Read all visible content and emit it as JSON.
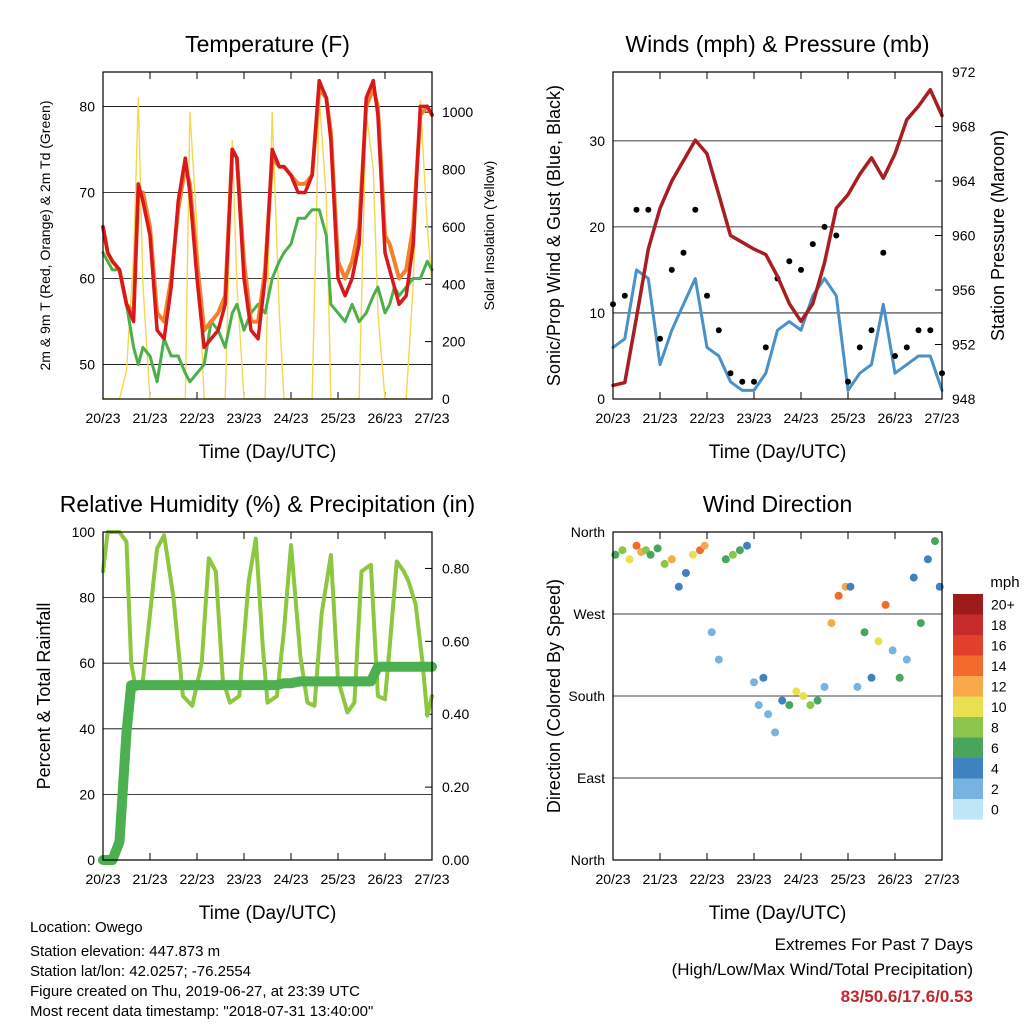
{
  "chart_data": [
    {
      "type": "line",
      "title": "Temperature (F)",
      "xlabel": "Time (Day/UTC)",
      "ylabel": "2m & 9m T (Red, Orange) & 2m Td (Green)",
      "ylabel_right": "Solar Insolation (Yellow)",
      "x_ticks": [
        "20/23",
        "21/23",
        "22/23",
        "23/23",
        "24/23",
        "25/23",
        "26/23",
        "27/23"
      ],
      "ylim": [
        46,
        84
      ],
      "y_ticks": [
        50,
        60,
        70,
        80
      ],
      "y2lim": [
        0,
        1140
      ],
      "y2_ticks": [
        0,
        200,
        400,
        600,
        800,
        1000
      ],
      "grid": true,
      "colors": {
        "t2m": "#d7191c",
        "t9m": "#f4802a",
        "td": "#4daf4a",
        "solar": "#f5d84e"
      },
      "x": [
        0,
        0.1,
        0.2,
        0.35,
        0.5,
        0.65,
        0.75,
        0.85,
        1,
        1.15,
        1.3,
        1.45,
        1.6,
        1.75,
        1.85,
        2,
        2.15,
        2.3,
        2.45,
        2.6,
        2.75,
        2.85,
        3,
        3.15,
        3.3,
        3.45,
        3.6,
        3.75,
        3.85,
        4,
        4.15,
        4.3,
        4.45,
        4.6,
        4.75,
        4.85,
        5,
        5.15,
        5.3,
        5.45,
        5.6,
        5.75,
        5.85,
        6,
        6.1,
        6.2,
        6.3,
        6.45,
        6.6,
        6.75,
        6.9,
        7
      ],
      "series": [
        {
          "name": "2m T",
          "values": [
            66,
            63,
            62,
            61,
            57,
            55,
            71,
            69,
            65,
            54,
            53,
            59,
            69,
            74,
            70,
            60,
            52,
            53,
            54,
            57,
            75,
            74,
            60,
            54,
            53,
            60,
            75,
            73,
            73,
            72,
            70,
            70,
            72,
            83,
            81,
            76,
            60,
            58,
            60,
            64,
            81,
            83,
            79,
            63,
            61,
            59,
            57,
            58,
            64,
            80,
            80,
            79
          ]
        },
        {
          "name": "9m T",
          "values": [
            66,
            63,
            62,
            61,
            57,
            56,
            70,
            70,
            66,
            56,
            55,
            60,
            68,
            73,
            71,
            62,
            54,
            55,
            56,
            58,
            75,
            74,
            62,
            55,
            55,
            61,
            74,
            73,
            73,
            72,
            71,
            71,
            72,
            82,
            81,
            77,
            62,
            60,
            62,
            66,
            80,
            82,
            80,
            65,
            64,
            62,
            60,
            61,
            66,
            79,
            80,
            79
          ]
        },
        {
          "name": "2m Td",
          "values": [
            63,
            62,
            61,
            61,
            57,
            52,
            50,
            52,
            51,
            48,
            53,
            51,
            51,
            49,
            48,
            49,
            50,
            55,
            54,
            52,
            56,
            57,
            54,
            56,
            57,
            56,
            60,
            62,
            63,
            64,
            67,
            67,
            68,
            68,
            65,
            57,
            56,
            55,
            57,
            55,
            56,
            58,
            59,
            56,
            57,
            59,
            58,
            59,
            60,
            60,
            62,
            61
          ]
        },
        {
          "name": "Solar",
          "values": [
            0,
            0,
            0,
            0,
            100,
            500,
            1050,
            400,
            0,
            0,
            0,
            0,
            0,
            0,
            1000,
            600,
            0,
            0,
            0,
            0,
            900,
            400,
            0,
            0,
            0,
            0,
            1000,
            300,
            0,
            0,
            0,
            0,
            0,
            1050,
            700,
            0,
            0,
            0,
            0,
            0,
            1000,
            800,
            300,
            0,
            0,
            0,
            0,
            0,
            400,
            1040,
            600,
            400
          ]
        }
      ]
    },
    {
      "type": "scatter",
      "title": "Winds (mph) & Pressure (mb)",
      "xlabel": "Time (Day/UTC)",
      "ylabel": "Sonic/Prop Wind & Gust (Blue, Black)",
      "ylabel_right": "Station Pressure (Maroon)",
      "x_ticks": [
        "20/23",
        "21/23",
        "22/23",
        "23/23",
        "24/23",
        "25/23",
        "26/23",
        "27/23"
      ],
      "ylim": [
        0,
        38
      ],
      "y_ticks": [
        0,
        10,
        20,
        30
      ],
      "y2lim": [
        948,
        972
      ],
      "y2_ticks": [
        948,
        952,
        956,
        960,
        964,
        968,
        972
      ],
      "grid": true,
      "colors": {
        "wind": "#4a90c9",
        "gust": "#000000",
        "pressure": "#a81e22"
      },
      "x": [
        0,
        0.25,
        0.5,
        0.75,
        1,
        1.25,
        1.5,
        1.75,
        2,
        2.25,
        2.5,
        2.75,
        3,
        3.25,
        3.5,
        3.75,
        4,
        4.25,
        4.5,
        4.75,
        5,
        5.25,
        5.5,
        5.75,
        6,
        6.25,
        6.5,
        6.75,
        7
      ],
      "series": [
        {
          "name": "Wind",
          "values": [
            6,
            7,
            15,
            14,
            4,
            8,
            11,
            14,
            6,
            5,
            2,
            1,
            1,
            3,
            8,
            9,
            8,
            12,
            14,
            12,
            1,
            3,
            4,
            11,
            3,
            4,
            5,
            5,
            1
          ]
        },
        {
          "name": "Gust",
          "values": [
            11,
            12,
            22,
            22,
            7,
            15,
            17,
            22,
            12,
            8,
            3,
            2,
            2,
            6,
            14,
            16,
            15,
            18,
            20,
            19,
            2,
            6,
            8,
            17,
            5,
            6,
            8,
            8,
            3
          ]
        },
        {
          "name": "Pressure",
          "values": [
            949,
            949.2,
            954,
            959,
            962,
            964,
            965.5,
            967,
            966,
            963,
            960,
            959.5,
            959,
            958.6,
            957,
            955,
            953.7,
            955,
            958,
            962,
            963,
            964.5,
            965.7,
            964.2,
            966,
            968.5,
            969.5,
            970.7,
            968.8
          ]
        }
      ]
    },
    {
      "type": "line",
      "title": "Relative Humidity (%) & Precipitation (in)",
      "xlabel": "Time (Day/UTC)",
      "ylabel": "Percent & Total Rainfall",
      "x_ticks": [
        "20/23",
        "21/23",
        "22/23",
        "23/23",
        "24/23",
        "25/23",
        "26/23",
        "27/23"
      ],
      "ylim": [
        0,
        100
      ],
      "y_ticks": [
        0,
        20,
        40,
        60,
        80,
        100
      ],
      "y2lim": [
        0,
        0.9
      ],
      "y2_ticks": [
        "0.00",
        "0.20",
        "0.40",
        "0.60",
        "0.80"
      ],
      "grid": true,
      "colors": {
        "rh": "#8dc63f",
        "precip": "#4caf50"
      },
      "x": [
        0,
        0.1,
        0.2,
        0.35,
        0.5,
        0.6,
        0.7,
        0.85,
        1,
        1.15,
        1.3,
        1.5,
        1.7,
        1.9,
        2.1,
        2.25,
        2.4,
        2.55,
        2.7,
        2.9,
        3.1,
        3.25,
        3.4,
        3.5,
        3.7,
        3.85,
        4,
        4.2,
        4.35,
        4.5,
        4.65,
        4.85,
        5,
        5.2,
        5.35,
        5.5,
        5.7,
        5.85,
        6,
        6.1,
        6.25,
        6.4,
        6.5,
        6.65,
        6.8,
        6.9,
        7
      ],
      "series": [
        {
          "name": "RH",
          "values": [
            88,
            100,
            100,
            100,
            97,
            60,
            52,
            55,
            75,
            95,
            99,
            80,
            50,
            47,
            60,
            92,
            88,
            55,
            48,
            50,
            85,
            98,
            65,
            48,
            50,
            70,
            96,
            62,
            48,
            47,
            75,
            93,
            55,
            45,
            48,
            88,
            90,
            50,
            49,
            65,
            91,
            88,
            85,
            78,
            60,
            44,
            50
          ]
        },
        {
          "name": "Precip",
          "values": [
            0,
            0,
            0,
            0.05,
            0.35,
            0.48,
            0.48,
            0.48,
            0.48,
            0.48,
            0.48,
            0.48,
            0.48,
            0.48,
            0.48,
            0.48,
            0.48,
            0.48,
            0.48,
            0.48,
            0.48,
            0.48,
            0.48,
            0.48,
            0.48,
            0.485,
            0.485,
            0.49,
            0.49,
            0.49,
            0.49,
            0.49,
            0.49,
            0.49,
            0.49,
            0.49,
            0.49,
            0.53,
            0.53,
            0.53,
            0.53,
            0.53,
            0.53,
            0.53,
            0.53,
            0.53,
            0.53
          ]
        }
      ]
    },
    {
      "type": "scatter",
      "title": "Wind Direction",
      "xlabel": "Time (Day/UTC)",
      "ylabel": "Direction (Colored By Speed)",
      "x_ticks": [
        "20/23",
        "21/23",
        "22/23",
        "23/23",
        "24/23",
        "25/23",
        "26/23",
        "27/23"
      ],
      "y_ticks": [
        "North",
        "East",
        "South",
        "West",
        "North"
      ],
      "ylim": [
        0,
        360
      ],
      "grid": true,
      "colorbar": {
        "title": "mph",
        "labels": [
          "20+",
          "18",
          "16",
          "14",
          "12",
          "10",
          "8",
          "6",
          "4",
          "2",
          "0"
        ],
        "colors": [
          "#9e1b1b",
          "#c62a2a",
          "#e2402a",
          "#f26a2c",
          "#f9a94a",
          "#e8e04e",
          "#8cc54a",
          "#49a55d",
          "#3f82c0",
          "#76b3e0",
          "#bfe6f7"
        ]
      },
      "x": [
        0.05,
        0.2,
        0.35,
        0.5,
        0.6,
        0.7,
        0.8,
        0.95,
        1.1,
        1.25,
        1.4,
        1.55,
        1.7,
        1.85,
        1.95,
        2.1,
        2.25,
        2.4,
        2.55,
        2.7,
        2.85,
        3,
        3.1,
        3.2,
        3.3,
        3.45,
        3.6,
        3.75,
        3.9,
        4.05,
        4.2,
        4.35,
        4.5,
        4.65,
        4.8,
        4.95,
        5.05,
        5.2,
        5.35,
        5.5,
        5.65,
        5.8,
        5.95,
        6.1,
        6.25,
        6.4,
        6.55,
        6.7,
        6.85,
        6.95
      ],
      "series": [
        {
          "name": "Direction",
          "values": [
            335,
            340,
            330,
            345,
            338,
            340,
            335,
            342,
            325,
            330,
            300,
            315,
            335,
            340,
            345,
            250,
            220,
            330,
            335,
            340,
            345,
            195,
            170,
            200,
            160,
            140,
            175,
            170,
            185,
            180,
            170,
            175,
            190,
            260,
            290,
            300,
            300,
            190,
            250,
            200,
            240,
            280,
            230,
            200,
            220,
            310,
            260,
            330,
            350,
            300
          ]
        },
        {
          "name": "Speed",
          "values": [
            6,
            8,
            10,
            14,
            12,
            8,
            6,
            6,
            8,
            12,
            4,
            4,
            10,
            14,
            12,
            2,
            2,
            6,
            8,
            6,
            4,
            2,
            2,
            4,
            2,
            2,
            4,
            6,
            10,
            10,
            8,
            6,
            2,
            12,
            14,
            12,
            4,
            2,
            6,
            4,
            10,
            14,
            2,
            6,
            2,
            4,
            6,
            4,
            6,
            4
          ]
        }
      ]
    }
  ],
  "footer": {
    "location": "Location: Owego",
    "elevation": "Station elevation: 447.873 m",
    "latlon": "Station lat/lon: 42.0257; -76.2554",
    "created": "Figure created on Thu, 2019-06-27, at 23:39 UTC",
    "recent": "Most recent data timestamp: \"2018-07-31 13:40:00\"",
    "extremes_title": "Extremes For Past 7 Days",
    "extremes_sub": "(High/Low/Max Wind/Total Precipitation)",
    "extremes_values": "83/50.6/17.6/0.53"
  }
}
